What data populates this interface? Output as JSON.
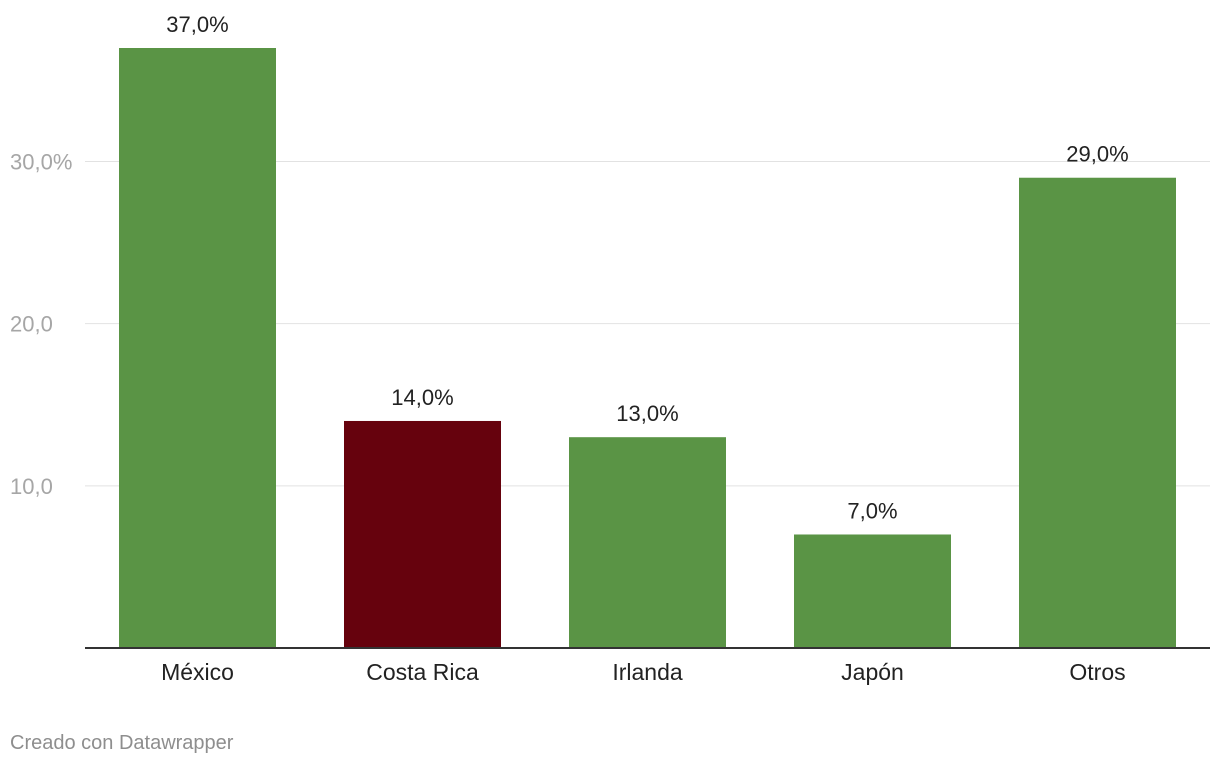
{
  "chart_data": {
    "type": "bar",
    "categories": [
      "México",
      "Costa Rica",
      "Irlanda",
      "Japón",
      "Otros"
    ],
    "values": [
      37.0,
      14.0,
      13.0,
      7.0,
      29.0
    ],
    "value_labels": [
      "37,0%",
      "14,0%",
      "13,0%",
      "7,0%",
      "29,0%"
    ],
    "colors": [
      "#5a9445",
      "#66020d",
      "#5a9445",
      "#5a9445",
      "#5a9445"
    ],
    "y_ticks": [
      {
        "value": 10,
        "label": "10,0"
      },
      {
        "value": 20,
        "label": "20,0"
      },
      {
        "value": 30,
        "label": "30,0%"
      }
    ],
    "ylim": [
      0,
      37
    ],
    "grid": true,
    "legend": "none",
    "title": "",
    "xlabel": "",
    "ylabel": ""
  },
  "footer": {
    "credit": "Creado con Datawrapper"
  }
}
